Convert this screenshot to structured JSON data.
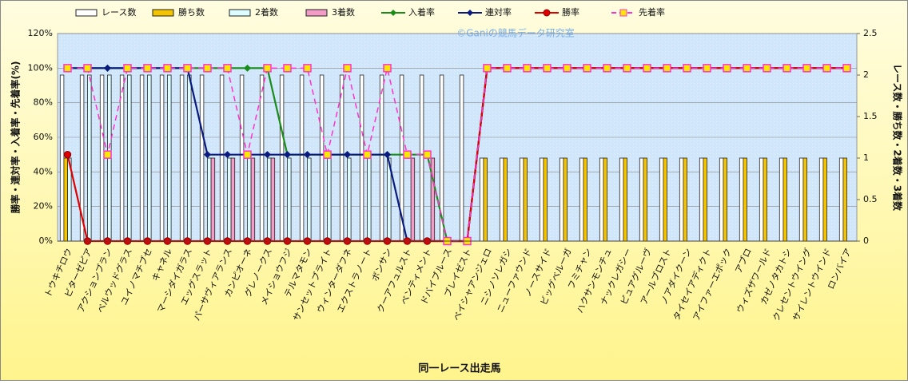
{
  "chart_data": {
    "type": "combo",
    "watermark": "©Ganiの競馬データ研究室",
    "x_label": "同一レース出走馬",
    "y_label": "勝率・連対率・入着率・先着率(%)",
    "y2_label": "レース数・勝ち数・2着数・3着数",
    "legend": "top",
    "grid": true,
    "categories": [
      "トウキチロウ",
      "ビターゼピア",
      "アクションブラン",
      "ベルウッドグラス",
      "ユイノマチブセ",
      "キャネル",
      "マーシダイガラス",
      "エッグスラット",
      "パーサヴィアランス",
      "カンピオーネ",
      "グレノークス",
      "メイショウフジ",
      "テルマタモン",
      "サンセットブライト",
      "ウィンターダフネ",
      "エクストラノート",
      "ボンサン",
      "クーアフュルスト",
      "ベンティメント",
      "ドバイブルース",
      "ブレイゼスト",
      "ベイシャアンジェロ",
      "ニシノソレガシ",
      "ニューファウンド",
      "ノースサイド",
      "ビッグベルーガ",
      "フミチャン",
      "ハクサンモンチュ",
      "ナックレガシー",
      "ピュアグルーヴ",
      "アールブロスト",
      "ノアダイクーン",
      "タイセイアディクト",
      "アイファーエポック",
      "アブロ",
      "ウィズザワールド",
      "カゼノタカトシ",
      "クレセントウイング",
      "サイレントウインド",
      "ロンバイア"
    ],
    "ylim": [
      0,
      120
    ],
    "yticks": [
      {
        "value": 0,
        "label": "0%"
      },
      {
        "value": 20,
        "label": "20%"
      },
      {
        "value": 40,
        "label": "40%"
      },
      {
        "value": 60,
        "label": "60%"
      },
      {
        "value": 80,
        "label": "80%"
      },
      {
        "value": 100,
        "label": "100%"
      },
      {
        "value": 120,
        "label": "120%"
      }
    ],
    "y2lim": [
      0,
      2.5
    ],
    "y2ticks": [
      0,
      0.5,
      1,
      1.5,
      2,
      2.5
    ],
    "series": [
      {
        "name": "レース数",
        "type": "bar",
        "axis": "y2",
        "color": "#ffffff",
        "values": [
          2,
          2,
          2,
          2,
          2,
          2,
          2,
          2,
          2,
          2,
          2,
          2,
          2,
          2,
          2,
          2,
          2,
          2,
          2,
          2,
          2,
          1,
          1,
          1,
          1,
          1,
          1,
          1,
          1,
          1,
          1,
          1,
          1,
          1,
          1,
          1,
          1,
          1,
          1,
          1
        ]
      },
      {
        "name": "勝ち数",
        "type": "bar",
        "axis": "y2",
        "color": "#f5c400",
        "values": [
          1,
          0,
          0,
          0,
          0,
          0,
          0,
          0,
          0,
          0,
          0,
          0,
          0,
          0,
          0,
          0,
          0,
          0,
          0,
          0,
          0,
          1,
          1,
          1,
          1,
          1,
          1,
          1,
          1,
          1,
          1,
          1,
          1,
          1,
          1,
          1,
          1,
          1,
          1,
          1
        ]
      },
      {
        "name": "2着数",
        "type": "bar",
        "axis": "y2",
        "color": "#dcfcff",
        "values": [
          1,
          2,
          2,
          2,
          2,
          2,
          2,
          1,
          1,
          1,
          1,
          1,
          1,
          1,
          1,
          1,
          1,
          0,
          0,
          0,
          0,
          0,
          0,
          0,
          0,
          0,
          0,
          0,
          0,
          0,
          0,
          0,
          0,
          0,
          0,
          0,
          0,
          0,
          0,
          0
        ]
      },
      {
        "name": "3着数",
        "type": "bar",
        "axis": "y2",
        "color": "#f49cc8",
        "values": [
          0,
          0,
          0,
          0,
          0,
          0,
          0,
          1,
          1,
          1,
          1,
          0,
          0,
          0,
          0,
          0,
          0,
          1,
          1,
          0,
          0,
          0,
          0,
          0,
          0,
          0,
          0,
          0,
          0,
          0,
          0,
          0,
          0,
          0,
          0,
          0,
          0,
          0,
          0,
          0
        ]
      },
      {
        "name": "入着率",
        "type": "line",
        "marker": "diamond",
        "color": "#1a8c1a",
        "values": [
          100,
          100,
          100,
          100,
          100,
          100,
          100,
          100,
          100,
          100,
          100,
          50,
          50,
          50,
          50,
          50,
          50,
          50,
          50,
          0,
          0,
          100,
          100,
          100,
          100,
          100,
          100,
          100,
          100,
          100,
          100,
          100,
          100,
          100,
          100,
          100,
          100,
          100,
          100,
          100
        ]
      },
      {
        "name": "連対率",
        "type": "line",
        "marker": "diamond",
        "color": "#0a1a80",
        "values": [
          100,
          100,
          100,
          100,
          100,
          100,
          100,
          50,
          50,
          50,
          50,
          50,
          50,
          50,
          50,
          50,
          50,
          0,
          0,
          0,
          0,
          100,
          100,
          100,
          100,
          100,
          100,
          100,
          100,
          100,
          100,
          100,
          100,
          100,
          100,
          100,
          100,
          100,
          100,
          100
        ]
      },
      {
        "name": "勝率",
        "type": "line",
        "marker": "circle",
        "color": "#e00000",
        "values": [
          50,
          0,
          0,
          0,
          0,
          0,
          0,
          0,
          0,
          0,
          0,
          0,
          0,
          0,
          0,
          0,
          0,
          0,
          0,
          0,
          0,
          100,
          100,
          100,
          100,
          100,
          100,
          100,
          100,
          100,
          100,
          100,
          100,
          100,
          100,
          100,
          100,
          100,
          100,
          100
        ]
      },
      {
        "name": "先着率",
        "type": "line",
        "marker": "square",
        "dashed": true,
        "color": "#ff33cc",
        "values": [
          100,
          100,
          50,
          100,
          100,
          100,
          100,
          100,
          100,
          50,
          100,
          100,
          100,
          50,
          100,
          50,
          100,
          50,
          50,
          0,
          0,
          100,
          100,
          100,
          100,
          100,
          100,
          100,
          100,
          100,
          100,
          100,
          100,
          100,
          100,
          100,
          100,
          100,
          100,
          100
        ]
      }
    ]
  }
}
